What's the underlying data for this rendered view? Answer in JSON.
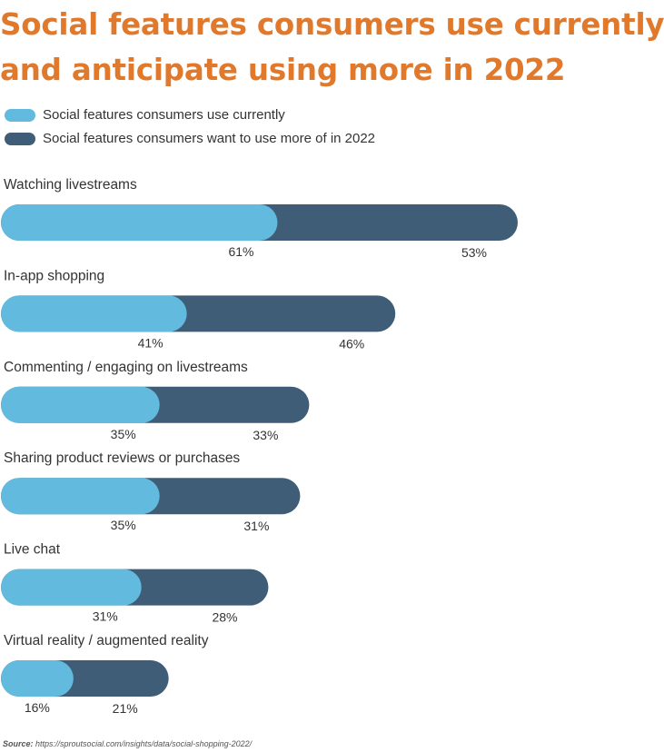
{
  "title_lines": [
    "Social features consumers use currently",
    "and anticipate using more in 2022"
  ],
  "colors": {
    "title": "#e0792b",
    "current": "#62bbde",
    "future": "#405d78"
  },
  "source": {
    "prefix": "Source:",
    "url": "https://sproutsocial.com/insights/data/social-shopping-2022/"
  },
  "chart_data": {
    "type": "bar",
    "orientation": "horizontal",
    "stacked": true,
    "title": "Social features consumers use currently and anticipate using more in 2022",
    "legend_position": "top-left",
    "grid": false,
    "categories": [
      "Watching livestreams",
      "In-app shopping",
      "Commenting / engaging on livestreams",
      "Sharing product reviews or purchases",
      "Live chat",
      "Virtual reality / augmented reality"
    ],
    "series": [
      {
        "name": "Social features consumers use currently",
        "values": [
          61,
          41,
          35,
          35,
          31,
          16
        ]
      },
      {
        "name": "Social features consumers want to use more of in 2022",
        "values": [
          53,
          46,
          33,
          31,
          28,
          21
        ]
      }
    ],
    "value_suffix": "%"
  }
}
